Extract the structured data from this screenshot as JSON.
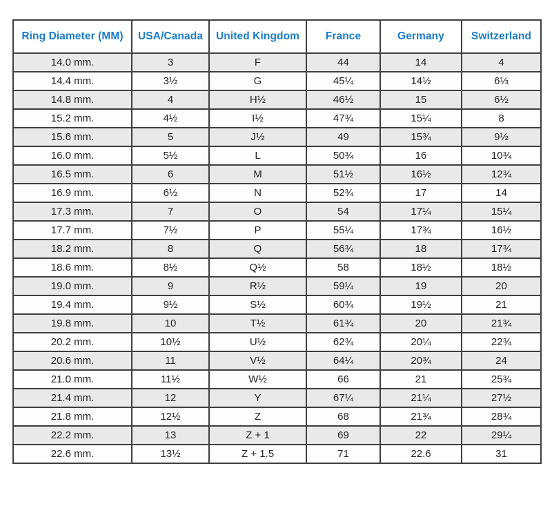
{
  "colors": {
    "header_text": "#1a7cc9",
    "stripe_row": "#e9e9e9",
    "plain_row": "#fdfdfd",
    "border": "#3f3f3f",
    "body_text": "#242424"
  },
  "table": {
    "name": "ring-size-conversion-table",
    "headers": [
      "Ring Diameter (MM)",
      "USA/Canada",
      "United Kingdom",
      "France",
      "Germany",
      "Switzerland"
    ],
    "rows": [
      [
        "14.0 mm.",
        "3",
        "F",
        "44",
        "14",
        "4"
      ],
      [
        "14.4 mm.",
        "3½",
        "G",
        "45¼",
        "14½",
        "6⅓"
      ],
      [
        "14.8 mm.",
        "4",
        "H½",
        "46½",
        "15",
        "6½"
      ],
      [
        "15.2 mm.",
        "4½",
        "I½",
        "47¾",
        "15¼",
        "8"
      ],
      [
        "15.6 mm.",
        "5",
        "J½",
        "49",
        "15¾",
        "9½"
      ],
      [
        "16.0 mm.",
        "5½",
        "L",
        "50¾",
        "16",
        "10¾"
      ],
      [
        "16.5 mm.",
        "6",
        "M",
        "51½",
        "16½",
        "12¾"
      ],
      [
        "16.9 mm.",
        "6½",
        "N",
        "52¾",
        "17",
        "14"
      ],
      [
        "17.3 mm.",
        "7",
        "O",
        "54",
        "17¼",
        "15¼"
      ],
      [
        "17.7 mm.",
        "7½",
        "P",
        "55¼",
        "17¾",
        "16½"
      ],
      [
        "18.2 mm.",
        "8",
        "Q",
        "56¾",
        "18",
        "17¾"
      ],
      [
        "18.6 mm.",
        "8½",
        "Q½",
        "58",
        "18½",
        "18½"
      ],
      [
        "19.0 mm.",
        "9",
        "R½",
        "59¼",
        "19",
        "20"
      ],
      [
        "19.4 mm.",
        "9½",
        "S½",
        "60¾",
        "19½",
        "21"
      ],
      [
        "19.8 mm.",
        "10",
        "T½",
        "61¾",
        "20",
        "21¾"
      ],
      [
        "20.2 mm.",
        "10½",
        "U½",
        "62¾",
        "20¼",
        "22¾"
      ],
      [
        "20.6 mm.",
        "11",
        "V½",
        "64¼",
        "20¾",
        "24"
      ],
      [
        "21.0 mm.",
        "11½",
        "W½",
        "66",
        "21",
        "25¾"
      ],
      [
        "21.4 mm.",
        "12",
        "Y",
        "67¼",
        "21¼",
        "27½"
      ],
      [
        "21.8 mm.",
        "12½",
        "Z",
        "68",
        "21¾",
        "28¾"
      ],
      [
        "22.2 mm.",
        "13",
        "Z + 1",
        "69",
        "22",
        "29¼"
      ],
      [
        "22.6 mm.",
        "13½",
        "Z + 1.5",
        "71",
        "22.6",
        "31"
      ]
    ]
  }
}
